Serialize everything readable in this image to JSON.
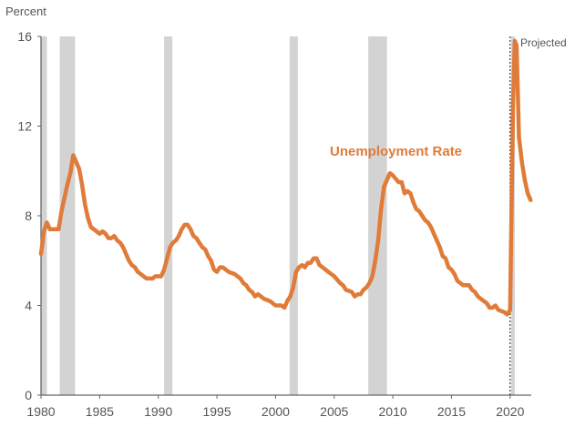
{
  "chart_data": {
    "type": "line",
    "title": "",
    "ylabel": "Percent",
    "xlabel": "",
    "xlim": [
      1980,
      2021.8
    ],
    "ylim": [
      0,
      16
    ],
    "x_ticks": [
      1980,
      1985,
      1990,
      1995,
      2000,
      2005,
      2010,
      2015,
      2020
    ],
    "y_ticks": [
      0,
      4,
      8,
      12,
      16
    ],
    "grid": false,
    "series": [
      {
        "name": "Unemployment Rate",
        "color": "#E07B39",
        "points": [
          [
            1980.0,
            6.3
          ],
          [
            1980.25,
            7.3
          ],
          [
            1980.5,
            7.7
          ],
          [
            1980.75,
            7.4
          ],
          [
            1981.0,
            7.4
          ],
          [
            1981.5,
            7.4
          ],
          [
            1981.75,
            8.2
          ],
          [
            1982.0,
            8.8
          ],
          [
            1982.25,
            9.4
          ],
          [
            1982.5,
            9.9
          ],
          [
            1982.75,
            10.7
          ],
          [
            1983.0,
            10.4
          ],
          [
            1983.25,
            10.1
          ],
          [
            1983.5,
            9.4
          ],
          [
            1983.75,
            8.5
          ],
          [
            1984.0,
            7.9
          ],
          [
            1984.25,
            7.5
          ],
          [
            1984.5,
            7.4
          ],
          [
            1984.75,
            7.3
          ],
          [
            1985.0,
            7.2
          ],
          [
            1985.25,
            7.3
          ],
          [
            1985.5,
            7.2
          ],
          [
            1985.75,
            7.0
          ],
          [
            1986.0,
            7.0
          ],
          [
            1986.25,
            7.1
          ],
          [
            1986.5,
            6.9
          ],
          [
            1986.75,
            6.8
          ],
          [
            1987.0,
            6.6
          ],
          [
            1987.25,
            6.3
          ],
          [
            1987.5,
            6.0
          ],
          [
            1987.75,
            5.8
          ],
          [
            1988.0,
            5.7
          ],
          [
            1988.25,
            5.5
          ],
          [
            1988.5,
            5.4
          ],
          [
            1988.75,
            5.3
          ],
          [
            1989.0,
            5.2
          ],
          [
            1989.5,
            5.2
          ],
          [
            1989.75,
            5.3
          ],
          [
            1990.0,
            5.3
          ],
          [
            1990.25,
            5.3
          ],
          [
            1990.5,
            5.6
          ],
          [
            1990.75,
            6.1
          ],
          [
            1991.0,
            6.6
          ],
          [
            1991.25,
            6.8
          ],
          [
            1991.5,
            6.9
          ],
          [
            1991.75,
            7.1
          ],
          [
            1992.0,
            7.4
          ],
          [
            1992.25,
            7.6
          ],
          [
            1992.5,
            7.6
          ],
          [
            1992.75,
            7.4
          ],
          [
            1993.0,
            7.1
          ],
          [
            1993.25,
            7.0
          ],
          [
            1993.5,
            6.8
          ],
          [
            1993.75,
            6.6
          ],
          [
            1994.0,
            6.5
          ],
          [
            1994.25,
            6.2
          ],
          [
            1994.5,
            6.0
          ],
          [
            1994.75,
            5.6
          ],
          [
            1995.0,
            5.5
          ],
          [
            1995.25,
            5.7
          ],
          [
            1995.5,
            5.7
          ],
          [
            1995.75,
            5.6
          ],
          [
            1996.0,
            5.5
          ],
          [
            1996.5,
            5.4
          ],
          [
            1996.75,
            5.3
          ],
          [
            1997.0,
            5.2
          ],
          [
            1997.25,
            5.0
          ],
          [
            1997.5,
            4.9
          ],
          [
            1997.75,
            4.7
          ],
          [
            1998.0,
            4.6
          ],
          [
            1998.25,
            4.4
          ],
          [
            1998.5,
            4.5
          ],
          [
            1998.75,
            4.4
          ],
          [
            1999.0,
            4.3
          ],
          [
            1999.5,
            4.2
          ],
          [
            1999.75,
            4.1
          ],
          [
            2000.0,
            4.0
          ],
          [
            2000.5,
            4.0
          ],
          [
            2000.75,
            3.9
          ],
          [
            2001.0,
            4.2
          ],
          [
            2001.25,
            4.4
          ],
          [
            2001.5,
            4.8
          ],
          [
            2001.75,
            5.5
          ],
          [
            2002.0,
            5.7
          ],
          [
            2002.25,
            5.8
          ],
          [
            2002.5,
            5.7
          ],
          [
            2002.75,
            5.9
          ],
          [
            2003.0,
            5.9
          ],
          [
            2003.25,
            6.1
          ],
          [
            2003.5,
            6.1
          ],
          [
            2003.75,
            5.8
          ],
          [
            2004.0,
            5.7
          ],
          [
            2004.5,
            5.5
          ],
          [
            2004.75,
            5.4
          ],
          [
            2005.0,
            5.3
          ],
          [
            2005.5,
            5.0
          ],
          [
            2005.75,
            4.9
          ],
          [
            2006.0,
            4.7
          ],
          [
            2006.5,
            4.6
          ],
          [
            2006.75,
            4.4
          ],
          [
            2007.0,
            4.5
          ],
          [
            2007.25,
            4.5
          ],
          [
            2007.5,
            4.7
          ],
          [
            2007.75,
            4.8
          ],
          [
            2008.0,
            5.0
          ],
          [
            2008.25,
            5.3
          ],
          [
            2008.5,
            6.0
          ],
          [
            2008.75,
            6.9
          ],
          [
            2009.0,
            8.3
          ],
          [
            2009.25,
            9.3
          ],
          [
            2009.5,
            9.6
          ],
          [
            2009.75,
            9.9
          ],
          [
            2010.0,
            9.8
          ],
          [
            2010.5,
            9.5
          ],
          [
            2010.75,
            9.5
          ],
          [
            2011.0,
            9.0
          ],
          [
            2011.25,
            9.1
          ],
          [
            2011.5,
            9.0
          ],
          [
            2011.75,
            8.6
          ],
          [
            2012.0,
            8.3
          ],
          [
            2012.25,
            8.2
          ],
          [
            2012.5,
            8.0
          ],
          [
            2012.75,
            7.8
          ],
          [
            2013.0,
            7.7
          ],
          [
            2013.25,
            7.5
          ],
          [
            2013.5,
            7.2
          ],
          [
            2013.75,
            6.9
          ],
          [
            2014.0,
            6.6
          ],
          [
            2014.25,
            6.2
          ],
          [
            2014.5,
            6.1
          ],
          [
            2014.75,
            5.7
          ],
          [
            2015.0,
            5.6
          ],
          [
            2015.25,
            5.4
          ],
          [
            2015.5,
            5.1
          ],
          [
            2015.75,
            5.0
          ],
          [
            2016.0,
            4.9
          ],
          [
            2016.5,
            4.9
          ],
          [
            2016.75,
            4.7
          ],
          [
            2017.0,
            4.6
          ],
          [
            2017.25,
            4.4
          ],
          [
            2017.5,
            4.3
          ],
          [
            2017.75,
            4.2
          ],
          [
            2018.0,
            4.1
          ],
          [
            2018.25,
            3.9
          ],
          [
            2018.5,
            3.9
          ],
          [
            2018.75,
            4.0
          ],
          [
            2019.0,
            3.8
          ],
          [
            2019.5,
            3.7
          ],
          [
            2019.75,
            3.6
          ],
          [
            2020.0,
            3.8
          ],
          [
            2020.25,
            13.0
          ],
          [
            2020.4,
            15.8
          ],
          [
            2020.55,
            15.6
          ],
          [
            2020.75,
            11.5
          ],
          [
            2021.0,
            10.4
          ],
          [
            2021.25,
            9.6
          ],
          [
            2021.5,
            9.0
          ],
          [
            2021.75,
            8.7
          ]
        ]
      }
    ],
    "recessions": [
      [
        1980.0,
        1980.5
      ],
      [
        1981.6,
        1982.9
      ],
      [
        1990.5,
        1991.2
      ],
      [
        2001.2,
        2001.9
      ],
      [
        2007.9,
        2009.5
      ],
      [
        2020.1,
        2020.4
      ]
    ],
    "recession_color": "#D3D3D3",
    "projection_start": 2020.0,
    "annotations": {
      "series_label": "Unemployment Rate",
      "projected_label": "Projected"
    }
  }
}
